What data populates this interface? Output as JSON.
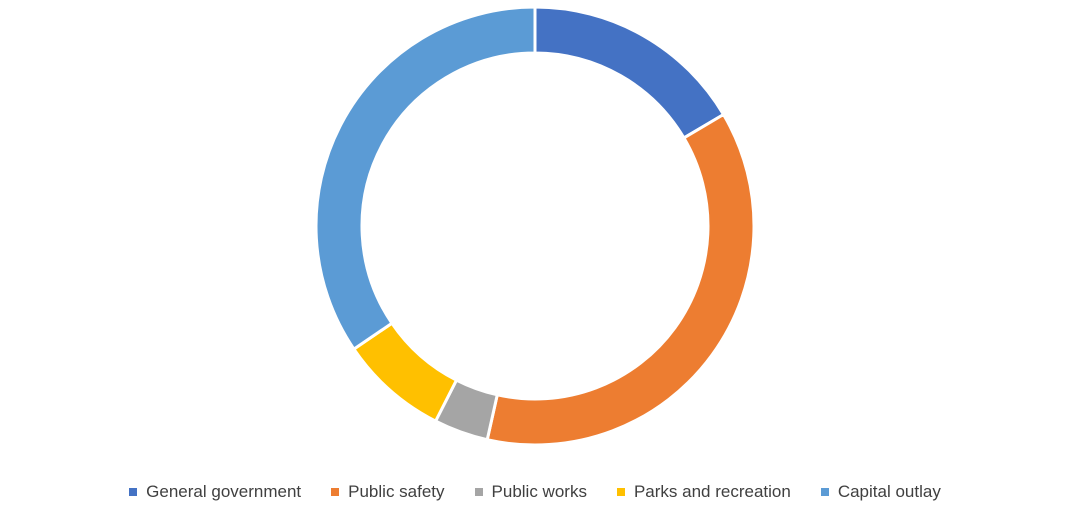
{
  "chart_data": {
    "type": "pie",
    "donut": true,
    "title": "",
    "legend_position": "bottom",
    "categories": [
      "General government",
      "Public safety",
      "Public works",
      "Parks and recreation",
      "Capital outlay"
    ],
    "values": [
      16.5,
      37,
      4,
      8,
      34.5
    ],
    "colors": [
      "#4472C4",
      "#ED7D31",
      "#A5A5A5",
      "#FFC000",
      "#5B9BD5"
    ]
  }
}
